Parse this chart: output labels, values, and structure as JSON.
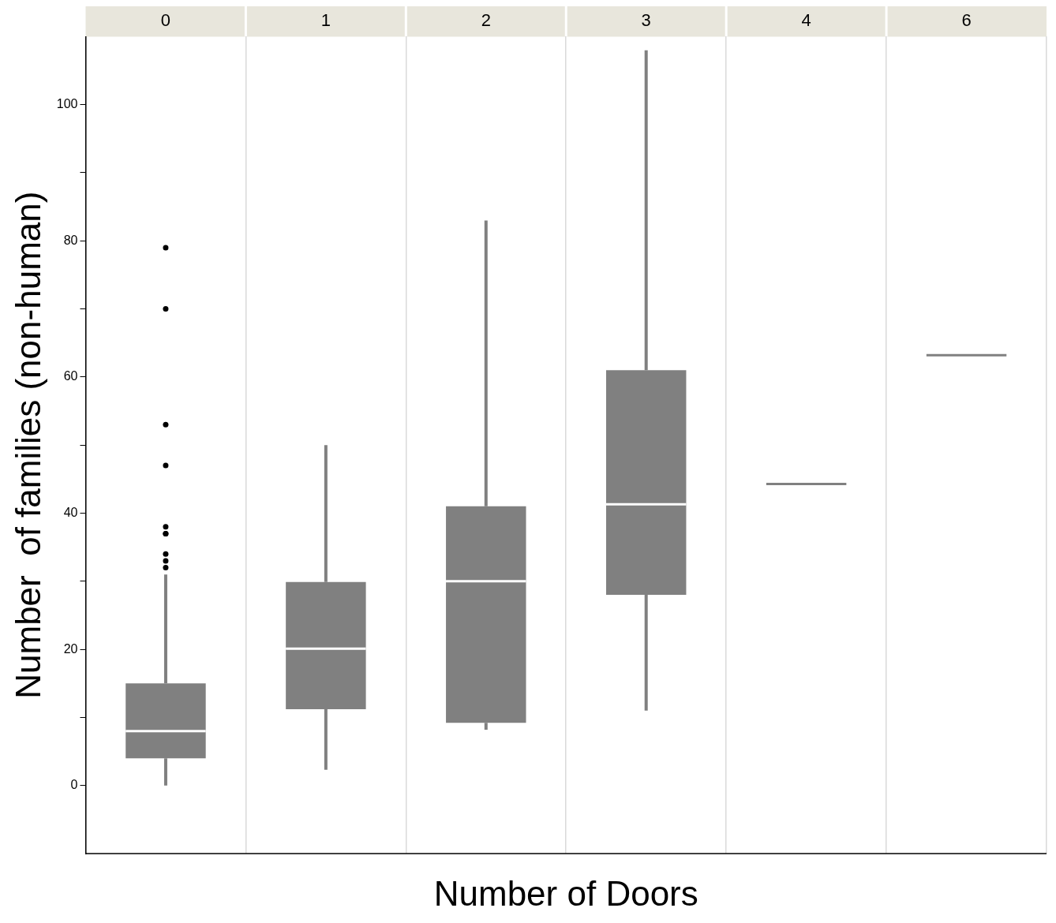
{
  "chart_data": {
    "type": "box",
    "xlabel": "Number of Doors",
    "ylabel": "Number  of families (non-human)",
    "categories": [
      "0",
      "1",
      "2",
      "3",
      "4",
      "6"
    ],
    "series": [
      {
        "color": "#808080",
        "boxes": [
          {
            "low": 0,
            "q1": 4,
            "median": 8,
            "q3": 15,
            "high": 31,
            "outliers": [
              79,
              70,
              53,
              47,
              38,
              37,
              37,
              34,
              33,
              32
            ]
          },
          {
            "low": 2.3,
            "q1": 11.2,
            "median": 20.1,
            "q3": 29.9,
            "high": 50
          },
          {
            "low": 8.2,
            "q1": 9.2,
            "median": 30,
            "q3": 41,
            "high": 83
          },
          {
            "low": 11,
            "q1": 28,
            "median": 41.3,
            "q3": 61,
            "high": 108
          },
          {
            "low": 44.3,
            "q1": 44.3,
            "median": 44.3,
            "q3": 44.3,
            "high": 44.3
          },
          {
            "low": 63.2,
            "q1": 63.2,
            "median": 63.2,
            "q3": 63.2,
            "high": 63.2
          }
        ]
      }
    ],
    "ylim": [
      -10,
      110
    ],
    "yticks": [
      0,
      {
        "value": 10,
        "label": null
      },
      20,
      {
        "value": 30,
        "label": null
      },
      40,
      {
        "value": 50,
        "label": null
      },
      60,
      {
        "value": 70,
        "label": null
      },
      80,
      {
        "value": 90,
        "label": null
      },
      100
    ],
    "grid": "x",
    "marker": "circle"
  }
}
